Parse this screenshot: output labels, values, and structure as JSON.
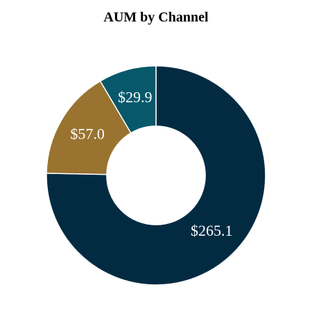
{
  "chart_data": {
    "type": "pie",
    "title": "AUM by Channel",
    "values": [
      265.1,
      57.0,
      29.9
    ],
    "labels": [
      "$265.1",
      "$57.0",
      "$29.9"
    ],
    "colors": [
      "#022b42",
      "#99732f",
      "#07586b"
    ],
    "hole": 0.45,
    "legend": false
  }
}
